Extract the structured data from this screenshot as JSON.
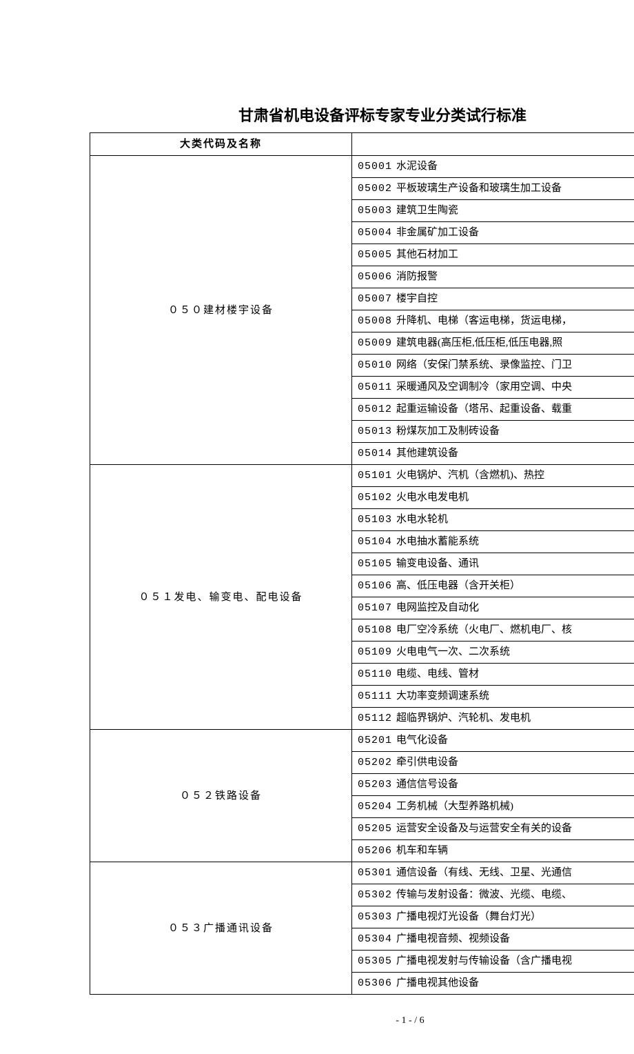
{
  "title": "甘肃省机电设备评标专家专业分类试行标准",
  "table": {
    "header": "大类代码及名称",
    "categories": [
      {
        "name": "０５０建材楼宇设备",
        "items": [
          {
            "code": "05001",
            "text": "水泥设备"
          },
          {
            "code": "05002",
            "text": "平板玻璃生产设备和玻璃生加工设备"
          },
          {
            "code": "05003",
            "text": "建筑卫生陶瓷"
          },
          {
            "code": "05004",
            "text": "非金属矿加工设备"
          },
          {
            "code": "05005",
            "text": "其他石材加工"
          },
          {
            "code": "05006",
            "text": "消防报警"
          },
          {
            "code": "05007",
            "text": "楼宇自控"
          },
          {
            "code": "05008",
            "text": "升降机、电梯（客运电梯，货运电梯，"
          },
          {
            "code": "05009",
            "text": "建筑电器(高压柜,低压柜,低压电器,照"
          },
          {
            "code": "05010",
            "text": "网络（安保门禁系统、录像监控、门卫"
          },
          {
            "code": "05011",
            "text": "采暖通风及空调制冷（家用空调、中央"
          },
          {
            "code": "05012",
            "text": "起重运输设备（塔吊、起重设备、载重"
          },
          {
            "code": "05013",
            "text": "粉煤灰加工及制砖设备"
          },
          {
            "code": "05014",
            "text": "其他建筑设备"
          }
        ]
      },
      {
        "name": "０５１发电、输变电、配电设备",
        "items": [
          {
            "code": "05101",
            "text": "火电锅炉、汽机（含燃机)、热控"
          },
          {
            "code": "05102",
            "text": "火电水电发电机"
          },
          {
            "code": "05103",
            "text": "水电水轮机"
          },
          {
            "code": "05104",
            "text": "水电抽水蓄能系统"
          },
          {
            "code": "05105",
            "text": "输变电设备、通讯"
          },
          {
            "code": "05106",
            "text": "高、低压电器（含开关柜）"
          },
          {
            "code": "05107",
            "text": "电网监控及自动化"
          },
          {
            "code": "05108",
            "text": "电厂空冷系统（火电厂、燃机电厂、核"
          },
          {
            "code": "05109",
            "text": "火电电气一次、二次系统"
          },
          {
            "code": "05110",
            "text": "电缆、电线、管材"
          },
          {
            "code": "05111",
            "text": "大功率变频调速系统"
          },
          {
            "code": "05112",
            "text": "超临界锅炉、汽轮机、发电机"
          }
        ]
      },
      {
        "name": "０５２铁路设备",
        "items": [
          {
            "code": "05201",
            "text": "电气化设备"
          },
          {
            "code": "05202",
            "text": "牵引供电设备"
          },
          {
            "code": "05203",
            "text": "通信信号设备"
          },
          {
            "code": "05204",
            "text": "工务机械（大型养路机械)"
          },
          {
            "code": "05205",
            "text": "运营安全设备及与运营安全有关的设备"
          },
          {
            "code": "05206",
            "text": "机车和车辆"
          }
        ]
      },
      {
        "name": "０５３广播通讯设备",
        "items": [
          {
            "code": "05301",
            "text": "通信设备（有线、无线、卫星、光通信"
          },
          {
            "code": "05302",
            "text": "传输与发射设备：微波、光缆、电缆、"
          },
          {
            "code": "05303",
            "text": "广播电视灯光设备（舞台灯光）"
          },
          {
            "code": "05304",
            "text": "广播电视音频、视频设备"
          },
          {
            "code": "05305",
            "text": "广播电视发射与传输设备（含广播电视"
          },
          {
            "code": "05306",
            "text": "广播电视其他设备"
          }
        ]
      }
    ]
  },
  "footer": {
    "current_page": "- 1 -",
    "separator": " / ",
    "total_pages": "6"
  }
}
